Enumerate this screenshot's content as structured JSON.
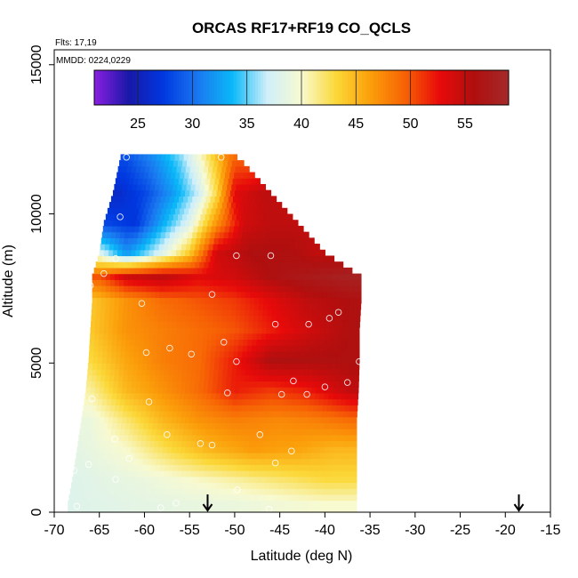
{
  "chart_data": {
    "type": "heatmap",
    "title": "ORCAS RF17+RF19 CO_QCLS",
    "annotations": [
      "Flts: 17,19",
      "MMDD: 0224,0229"
    ],
    "xlabel": "Latitude (deg N)",
    "ylabel": "Altitude (m)",
    "xlim": [
      -70,
      -15
    ],
    "ylim": [
      0,
      15500
    ],
    "x_ticks": [
      "-70",
      "-65",
      "-60",
      "-55",
      "-50",
      "-45",
      "-40",
      "-35",
      "-30",
      "-25",
      "-20",
      "-15"
    ],
    "y_ticks": [
      "0",
      "5000",
      "10000",
      "15000"
    ],
    "colorbar": {
      "min": 21,
      "max": 59,
      "ticks": [
        "25",
        "30",
        "35",
        "40",
        "45",
        "50",
        "55"
      ],
      "colors": [
        "#8b1fe0",
        "#1818a8",
        "#0038e0",
        "#1a78f0",
        "#0ab8f8",
        "#cfeffa",
        "#f8fad0",
        "#fbd838",
        "#fb9f0a",
        "#f76205",
        "#e80a0a",
        "#b00f0f",
        "#a32a2a"
      ]
    },
    "grid": false,
    "profile_rows": [
      {
        "alt": 200,
        "lat_min": -68.5,
        "lat_max": -36.5,
        "values": [
          [
            -68,
            38
          ],
          [
            -60,
            38.5
          ],
          [
            -50,
            39
          ],
          [
            -45,
            39.5
          ],
          [
            -40,
            40
          ],
          [
            -37,
            40
          ]
        ]
      },
      {
        "alt": 1000,
        "lat_min": -68,
        "lat_max": -36.5,
        "values": [
          [
            -68,
            38
          ],
          [
            -60,
            39
          ],
          [
            -55,
            40
          ],
          [
            -50,
            41
          ],
          [
            -45,
            42
          ],
          [
            -40,
            43
          ],
          [
            -37,
            43
          ]
        ]
      },
      {
        "alt": 2000,
        "lat_min": -67.5,
        "lat_max": -36.5,
        "values": [
          [
            -67,
            38.5
          ],
          [
            -62,
            40
          ],
          [
            -57,
            43
          ],
          [
            -53,
            45
          ],
          [
            -48,
            46.5
          ],
          [
            -43,
            46
          ],
          [
            -39,
            45
          ],
          [
            -37,
            45
          ]
        ]
      },
      {
        "alt": 3000,
        "lat_min": -67,
        "lat_max": -36.5,
        "values": [
          [
            -66,
            39
          ],
          [
            -62,
            42
          ],
          [
            -58,
            45
          ],
          [
            -54,
            47
          ],
          [
            -50,
            48
          ],
          [
            -45,
            47.5
          ],
          [
            -41,
            48
          ],
          [
            -37,
            49
          ]
        ]
      },
      {
        "alt": 4000,
        "lat_min": -66.5,
        "lat_max": -36.3,
        "values": [
          [
            -66,
            41
          ],
          [
            -62,
            45
          ],
          [
            -58,
            47
          ],
          [
            -54,
            49
          ],
          [
            -50,
            52
          ],
          [
            -46,
            51
          ],
          [
            -42,
            52
          ],
          [
            -37,
            55
          ]
        ]
      },
      {
        "alt": 5000,
        "lat_min": -66.2,
        "lat_max": -36.2,
        "values": [
          [
            -66,
            43
          ],
          [
            -62,
            46
          ],
          [
            -58,
            48
          ],
          [
            -54,
            49
          ],
          [
            -50,
            52
          ],
          [
            -46,
            56
          ],
          [
            -42,
            56
          ],
          [
            -37,
            56
          ]
        ]
      },
      {
        "alt": 6000,
        "lat_min": -66,
        "lat_max": -36.2,
        "values": [
          [
            -66,
            44
          ],
          [
            -62,
            47
          ],
          [
            -58,
            48
          ],
          [
            -54,
            49
          ],
          [
            -50,
            50
          ],
          [
            -46,
            52
          ],
          [
            -42,
            54
          ],
          [
            -37,
            56
          ]
        ]
      },
      {
        "alt": 7000,
        "lat_min": -65.8,
        "lat_max": -36,
        "values": [
          [
            -66,
            44
          ],
          [
            -62,
            47
          ],
          [
            -58,
            49
          ],
          [
            -54,
            50
          ],
          [
            -50,
            51
          ],
          [
            -46,
            53
          ],
          [
            -42,
            55
          ],
          [
            -37,
            56
          ]
        ]
      },
      {
        "alt": 7800,
        "lat_min": -65.8,
        "lat_max": -36,
        "values": [
          [
            -65,
            50
          ],
          [
            -62,
            54
          ],
          [
            -58,
            55
          ],
          [
            -54,
            53
          ],
          [
            -50,
            54
          ],
          [
            -46,
            56
          ],
          [
            -42,
            57
          ],
          [
            -37,
            58
          ]
        ]
      },
      {
        "alt": 8600,
        "lat_min": -65,
        "lat_max": -40,
        "values": [
          [
            -65,
            38
          ],
          [
            -62,
            32
          ],
          [
            -58,
            38
          ],
          [
            -55,
            44
          ],
          [
            -52,
            54
          ],
          [
            -48,
            56
          ],
          [
            -44,
            56
          ],
          [
            -41,
            55
          ]
        ]
      },
      {
        "alt": 9600,
        "lat_min": -64.5,
        "lat_max": -43,
        "values": [
          [
            -64,
            28
          ],
          [
            -61,
            27
          ],
          [
            -58,
            33
          ],
          [
            -55,
            38
          ],
          [
            -52,
            47
          ],
          [
            -49,
            54
          ],
          [
            -46,
            55
          ],
          [
            -43.5,
            55
          ]
        ]
      },
      {
        "alt": 10600,
        "lat_min": -63.5,
        "lat_max": -46,
        "values": [
          [
            -63,
            26
          ],
          [
            -60,
            28
          ],
          [
            -57,
            32
          ],
          [
            -54,
            37
          ],
          [
            -52,
            43
          ],
          [
            -50,
            53
          ],
          [
            -47,
            55
          ]
        ]
      },
      {
        "alt": 11600,
        "lat_min": -62.8,
        "lat_max": -49,
        "values": [
          [
            -62,
            28
          ],
          [
            -59,
            31
          ],
          [
            -56,
            35
          ],
          [
            -54,
            39
          ],
          [
            -52,
            44
          ],
          [
            -50,
            50
          ]
        ]
      },
      {
        "alt": 12000,
        "lat_min": -62.5,
        "lat_max": -50.5,
        "values": [
          [
            -62,
            29
          ],
          [
            -59,
            32
          ],
          [
            -56,
            36
          ],
          [
            -54,
            40
          ],
          [
            -52,
            45
          ],
          [
            -51,
            48
          ]
        ]
      }
    ],
    "sample_points": [
      [
        -62,
        11900
      ],
      [
        -51.5,
        11900
      ],
      [
        -62.7,
        9900
      ],
      [
        -63.2,
        8500
      ],
      [
        -66,
        7600
      ],
      [
        -64.5,
        8000
      ],
      [
        -60.3,
        7000
      ],
      [
        -52.5,
        7300
      ],
      [
        -49.8,
        8600
      ],
      [
        -46,
        8600
      ],
      [
        -38.5,
        6700
      ],
      [
        -39.5,
        6500
      ],
      [
        -41.8,
        6300
      ],
      [
        -45.5,
        6300
      ],
      [
        -51.2,
        5700
      ],
      [
        -57.2,
        5500
      ],
      [
        -59.8,
        5350
      ],
      [
        -54.8,
        5300
      ],
      [
        -49.8,
        5050
      ],
      [
        -36.2,
        5050
      ],
      [
        -43.5,
        4400
      ],
      [
        -37.5,
        4350
      ],
      [
        -40,
        4200
      ],
      [
        -42,
        3950
      ],
      [
        -44.8,
        3950
      ],
      [
        -50.8,
        4000
      ],
      [
        -59.5,
        3700
      ],
      [
        -65.8,
        3800
      ],
      [
        -47.2,
        2600
      ],
      [
        -57.5,
        2600
      ],
      [
        -63.3,
        2450
      ],
      [
        -53.8,
        2300
      ],
      [
        -52.5,
        2250
      ],
      [
        -43.7,
        2050
      ],
      [
        -61.7,
        1800
      ],
      [
        -45.5,
        1650
      ],
      [
        -66.2,
        1600
      ],
      [
        -67.8,
        1400
      ],
      [
        -63.2,
        1100
      ],
      [
        -49.7,
        750
      ],
      [
        -56.5,
        300
      ],
      [
        -58.2,
        150
      ],
      [
        -46.2,
        100
      ],
      [
        -67.5,
        200
      ]
    ],
    "flight_markers": [
      -53,
      -18.5
    ]
  }
}
